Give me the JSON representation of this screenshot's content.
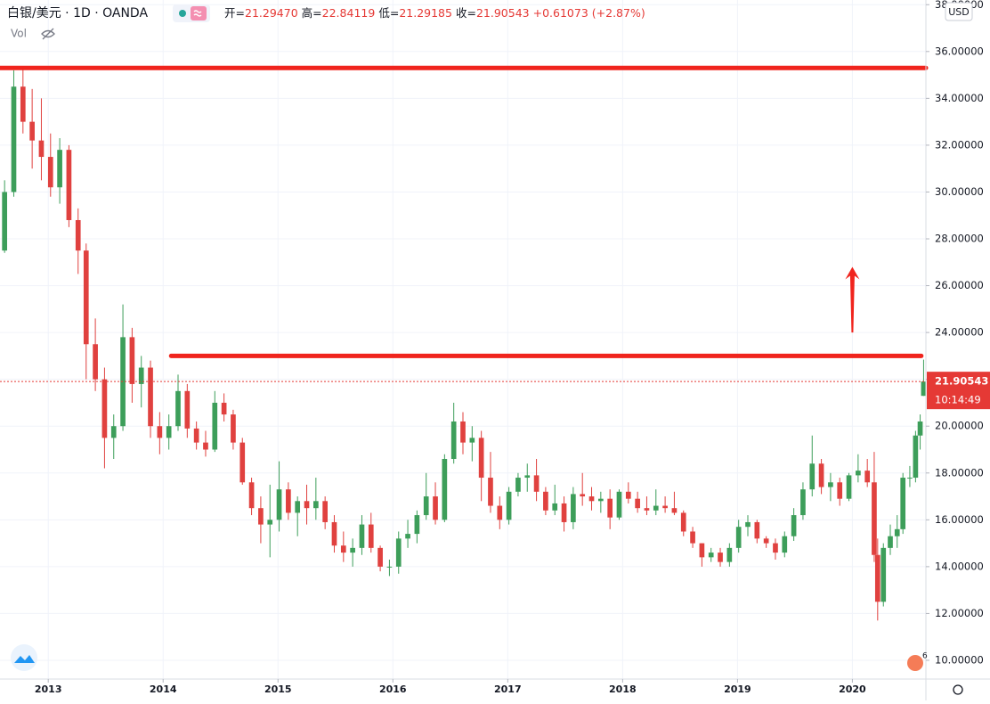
{
  "chart_data": {
    "type": "candlestick",
    "title": "白银/美元 · 1D · OANDA",
    "legend": [
      {
        "key": "开",
        "value": "21.29470"
      },
      {
        "key": "高",
        "value": "22.84119"
      },
      {
        "key": "低",
        "value": "21.29185"
      },
      {
        "key": "收",
        "value": "21.90543"
      }
    ],
    "change": "+0.61073 (+2.87%)",
    "volume_label": "Vol",
    "currency": "USD",
    "up_color": "#3d9e5a",
    "down_color": "#e0413f",
    "grid": true,
    "xlim": [
      2012.58,
      2020.64
    ],
    "xticks": [
      2013,
      2014,
      2015,
      2016,
      2017,
      2018,
      2019,
      2020
    ],
    "ylim": [
      9.2,
      38.2
    ],
    "yticks": [
      {
        "value": 10,
        "label": "10.00000"
      },
      {
        "value": 12,
        "label": "12.00000"
      },
      {
        "value": 14,
        "label": "14.00000"
      },
      {
        "value": 16,
        "label": "16.00000"
      },
      {
        "value": 18,
        "label": "18.00000"
      },
      {
        "value": 20,
        "label": "20.00000"
      },
      {
        "value": 22,
        "label": "22.00000"
      },
      {
        "value": 24,
        "label": "24.00000"
      },
      {
        "value": 26,
        "label": "26.00000"
      },
      {
        "value": 28,
        "label": "28.00000"
      },
      {
        "value": 30,
        "label": "30.00000"
      },
      {
        "value": 32,
        "label": "32.00000"
      },
      {
        "value": 34,
        "label": "34.00000"
      },
      {
        "value": 36,
        "label": "36.00000"
      },
      {
        "value": 38,
        "label": "38.00000"
      }
    ],
    "x": [
      2012.62,
      2012.7,
      2012.78,
      2012.86,
      2012.94,
      2013.02,
      2013.1,
      2013.18,
      2013.26,
      2013.33,
      2013.41,
      2013.49,
      2013.57,
      2013.65,
      2013.73,
      2013.81,
      2013.89,
      2013.97,
      2014.05,
      2014.13,
      2014.21,
      2014.29,
      2014.37,
      2014.45,
      2014.53,
      2014.61,
      2014.69,
      2014.77,
      2014.85,
      2014.93,
      2015.01,
      2015.09,
      2015.17,
      2015.25,
      2015.33,
      2015.41,
      2015.49,
      2015.57,
      2015.65,
      2015.73,
      2015.81,
      2015.89,
      2015.97,
      2016.05,
      2016.13,
      2016.21,
      2016.29,
      2016.37,
      2016.45,
      2016.53,
      2016.61,
      2016.69,
      2016.77,
      2016.85,
      2016.93,
      2017.01,
      2017.09,
      2017.17,
      2017.25,
      2017.33,
      2017.41,
      2017.49,
      2017.57,
      2017.65,
      2017.73,
      2017.81,
      2017.89,
      2017.97,
      2018.05,
      2018.13,
      2018.21,
      2018.29,
      2018.37,
      2018.45,
      2018.53,
      2018.61,
      2018.69,
      2018.77,
      2018.85,
      2018.93,
      2019.01,
      2019.09,
      2019.17,
      2019.25,
      2019.33,
      2019.41,
      2019.49,
      2019.57,
      2019.65,
      2019.73,
      2019.81,
      2019.89,
      2019.97,
      2020.05,
      2020.13,
      2020.19,
      2020.22,
      2020.27,
      2020.33,
      2020.39,
      2020.44,
      2020.5,
      2020.55,
      2020.59,
      2020.62
    ],
    "open": [
      27.5,
      30.0,
      34.5,
      33.0,
      32.2,
      31.5,
      30.2,
      31.8,
      28.8,
      27.5,
      23.5,
      22.0,
      19.5,
      20.0,
      23.8,
      21.8,
      22.5,
      20.0,
      19.5,
      20.0,
      21.5,
      19.9,
      19.3,
      19.0,
      21.0,
      20.5,
      19.3,
      17.6,
      16.5,
      15.8,
      16.0,
      17.3,
      16.3,
      16.8,
      16.5,
      16.8,
      15.9,
      14.9,
      14.6,
      14.8,
      15.8,
      14.8,
      14.0,
      14.0,
      15.2,
      15.4,
      16.2,
      17.0,
      16.0,
      18.6,
      20.2,
      19.3,
      19.5,
      17.8,
      16.6,
      16.0,
      17.2,
      17.8,
      17.9,
      17.2,
      16.4,
      16.7,
      15.9,
      17.1,
      17.0,
      16.8,
      16.9,
      16.1,
      17.2,
      16.9,
      16.5,
      16.4,
      16.6,
      16.5,
      16.3,
      15.5,
      15.0,
      14.4,
      14.6,
      14.2,
      14.8,
      15.7,
      15.9,
      15.2,
      15.0,
      14.6,
      15.3,
      16.2,
      17.3,
      18.4,
      17.4,
      17.6,
      16.9,
      17.9,
      18.1,
      17.6,
      14.5,
      12.5,
      14.8,
      15.3,
      15.6,
      17.8,
      17.8,
      19.6,
      21.2947
    ],
    "high": [
      30.5,
      35.2,
      35.3,
      34.4,
      34.0,
      32.5,
      32.3,
      32.0,
      29.3,
      27.8,
      24.6,
      22.5,
      20.5,
      25.2,
      24.2,
      23.0,
      22.8,
      20.6,
      20.5,
      22.2,
      21.8,
      20.2,
      19.8,
      21.5,
      21.4,
      20.7,
      19.5,
      17.8,
      17.0,
      17.5,
      18.5,
      17.6,
      17.0,
      17.5,
      17.8,
      17.0,
      16.2,
      15.5,
      15.2,
      16.2,
      16.3,
      14.9,
      14.3,
      15.5,
      16.0,
      16.4,
      18.0,
      17.6,
      18.8,
      21.0,
      20.6,
      20.0,
      19.8,
      18.9,
      17.0,
      17.4,
      18.0,
      18.4,
      18.6,
      17.4,
      17.5,
      17.0,
      17.4,
      18.0,
      17.4,
      17.2,
      17.3,
      17.3,
      17.6,
      17.2,
      17.0,
      17.3,
      17.0,
      17.2,
      16.4,
      15.7,
      15.0,
      14.8,
      14.8,
      15.0,
      16.0,
      16.2,
      16.0,
      15.3,
      15.2,
      15.5,
      16.5,
      17.6,
      19.6,
      18.6,
      18.0,
      17.8,
      18.0,
      18.8,
      18.6,
      18.9,
      15.2,
      15.0,
      15.8,
      16.2,
      18.0,
      18.3,
      19.8,
      20.5,
      22.84119
    ],
    "low": [
      27.4,
      29.8,
      32.5,
      31.0,
      30.5,
      29.8,
      29.5,
      28.5,
      26.5,
      22.0,
      21.5,
      18.2,
      18.6,
      19.8,
      21.0,
      20.8,
      19.5,
      18.8,
      19.0,
      19.8,
      19.5,
      19.0,
      18.7,
      18.9,
      20.2,
      19.0,
      17.5,
      16.2,
      15.0,
      14.4,
      15.5,
      16.0,
      15.3,
      15.8,
      16.0,
      15.6,
      14.6,
      14.2,
      14.0,
      14.5,
      14.6,
      13.8,
      13.6,
      13.7,
      14.8,
      15.0,
      16.0,
      15.8,
      15.9,
      18.4,
      18.8,
      18.5,
      16.8,
      16.3,
      15.6,
      15.8,
      17.0,
      17.2,
      16.8,
      16.2,
      16.2,
      15.5,
      15.6,
      16.6,
      16.4,
      16.3,
      15.6,
      16.0,
      16.7,
      16.3,
      16.2,
      16.2,
      16.3,
      16.2,
      15.3,
      14.8,
      14.0,
      14.2,
      14.0,
      14.0,
      14.6,
      15.3,
      15.0,
      14.8,
      14.3,
      14.4,
      15.1,
      16.0,
      17.0,
      17.1,
      16.8,
      16.6,
      16.8,
      17.6,
      17.4,
      14.2,
      11.7,
      12.3,
      14.5,
      14.8,
      15.4,
      17.4,
      17.6,
      19.0,
      21.29185
    ],
    "close": [
      30.0,
      34.5,
      33.0,
      32.2,
      31.5,
      30.2,
      31.8,
      28.8,
      27.5,
      23.5,
      22.0,
      19.5,
      20.0,
      23.8,
      21.8,
      22.5,
      20.0,
      19.5,
      20.0,
      21.5,
      19.9,
      19.3,
      19.0,
      21.0,
      20.5,
      19.3,
      17.6,
      16.5,
      15.8,
      16.0,
      17.3,
      16.3,
      16.8,
      16.5,
      16.8,
      15.9,
      14.9,
      14.6,
      14.8,
      15.8,
      14.8,
      14.0,
      14.0,
      15.2,
      15.4,
      16.2,
      17.0,
      16.0,
      18.6,
      20.2,
      19.3,
      19.5,
      17.8,
      16.6,
      16.0,
      17.2,
      17.8,
      17.9,
      17.2,
      16.4,
      16.7,
      15.9,
      17.1,
      17.0,
      16.8,
      16.9,
      16.1,
      17.2,
      16.9,
      16.5,
      16.4,
      16.6,
      16.5,
      16.3,
      15.5,
      15.0,
      14.4,
      14.6,
      14.2,
      14.8,
      15.7,
      15.9,
      15.2,
      15.0,
      14.6,
      15.3,
      16.2,
      17.3,
      18.4,
      17.4,
      17.6,
      16.9,
      17.9,
      18.1,
      17.6,
      14.5,
      12.5,
      14.8,
      15.3,
      15.6,
      17.8,
      17.8,
      19.6,
      20.2,
      21.90543
    ],
    "last_price": {
      "value": 21.90543,
      "label": "21.90543",
      "countdown": "10:14:49",
      "color": "#e53935"
    },
    "drawings": {
      "color": "#f0241d",
      "hlines": [
        {
          "value": 35.3,
          "x": [
            2012.58,
            2020.64
          ]
        },
        {
          "value": 23.0,
          "x": [
            2014.07,
            2020.6
          ]
        }
      ],
      "arrow": {
        "x": 2020.0,
        "y": [
          24.0,
          26.8
        ]
      }
    }
  }
}
